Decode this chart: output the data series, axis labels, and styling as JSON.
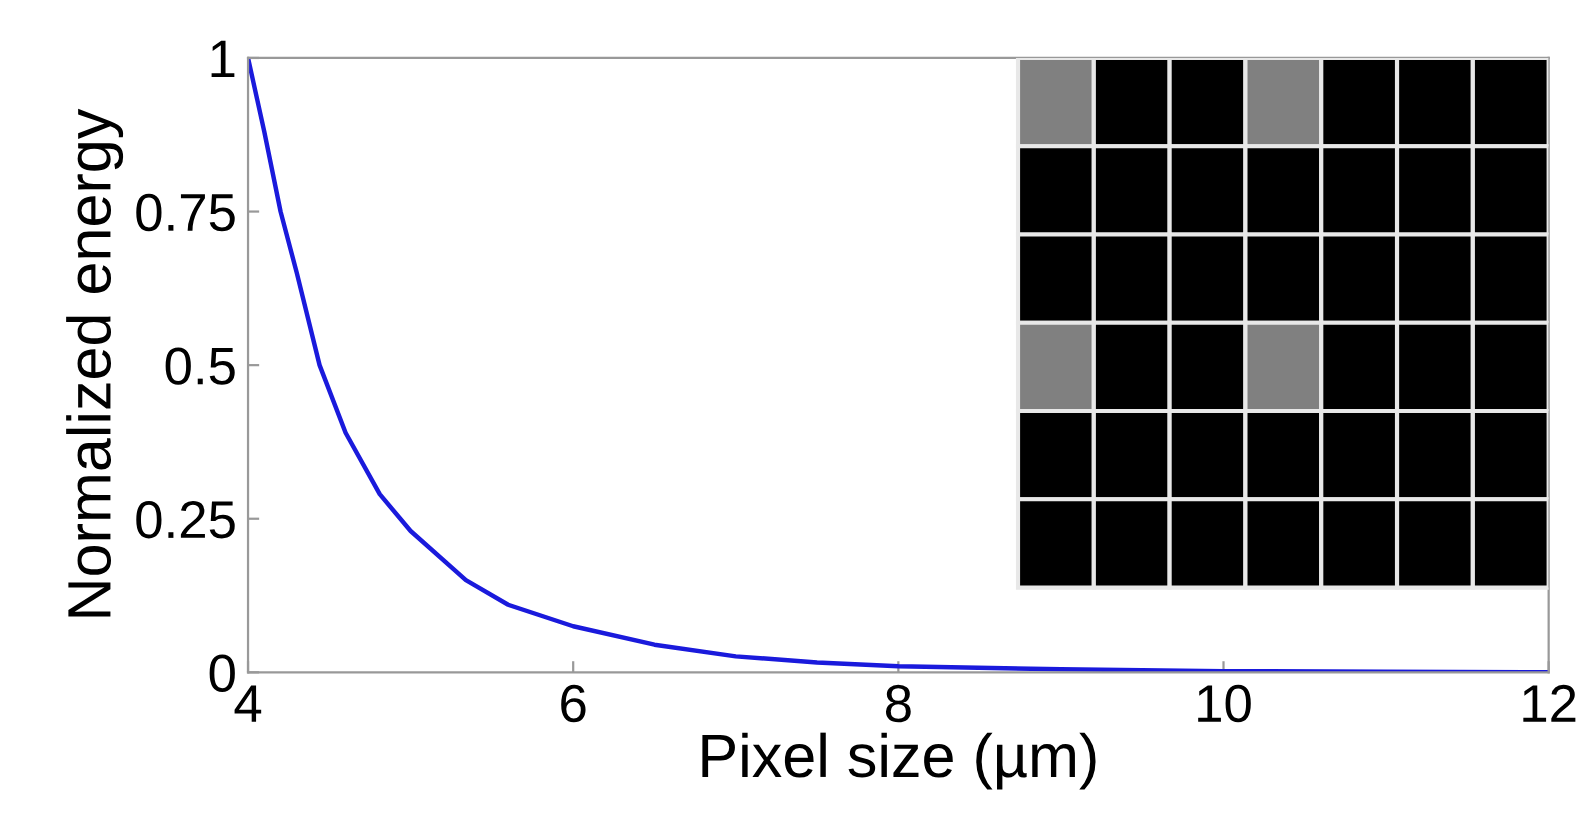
{
  "chart_data": {
    "type": "line",
    "xlabel": "Pixel size (µm)",
    "ylabel": "Normalized energy",
    "x": [
      4,
      4.1,
      4.2,
      4.3,
      4.44,
      4.6,
      4.81,
      5.0,
      5.34,
      5.6,
      6.0,
      6.5,
      7,
      7.5,
      8,
      9,
      10,
      11,
      12
    ],
    "series": [
      {
        "color": "#1a1adc",
        "values": [
          1,
          0.88,
          0.75,
          0.65,
          0.5,
          0.39,
          0.29,
          0.23,
          0.15,
          0.11,
          0.075,
          0.045,
          0.026,
          0.016,
          0.01,
          0.005,
          0.002,
          0.001,
          0
        ]
      }
    ],
    "xlim": [
      4,
      12
    ],
    "ylim": [
      0,
      1
    ],
    "xticks": [
      4,
      6,
      8,
      10,
      12
    ],
    "yticks": [
      0,
      0.25,
      0.5,
      0.75,
      1
    ],
    "grid": false,
    "legend": false,
    "marker": "none",
    "line_style": "solid"
  }
}
